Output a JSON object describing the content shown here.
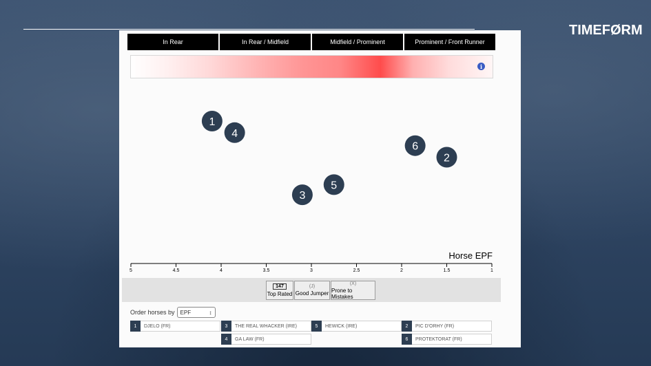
{
  "brand": "TIMEFØRM",
  "zones": [
    "In Rear",
    "In Rear / Midfield",
    "Midfield / Prominent",
    "Prominent / Front Runner"
  ],
  "colors": {
    "panel_bg": "#fbfbfb",
    "marker": "#2d3e52",
    "heat_peak": "#ff4c4c",
    "info": "#3a5cc4"
  },
  "icons": {
    "info": "info-icon",
    "select_arrow": "updown-arrow-icon"
  },
  "info_glyph": "i",
  "chart_data": {
    "type": "scatter",
    "xlabel": "Horse EPF",
    "x_reversed": true,
    "xlim": [
      5,
      1
    ],
    "xticks": [
      "5",
      "4.5",
      "4",
      "3.5",
      "3",
      "2.5",
      "2",
      "1.5",
      "1"
    ],
    "points": [
      {
        "label": "1",
        "x": 4.1,
        "row": 0.2
      },
      {
        "label": "4",
        "x": 3.85,
        "row": 0.28
      },
      {
        "label": "3",
        "x": 3.1,
        "row": 0.71
      },
      {
        "label": "5",
        "x": 2.75,
        "row": 0.64
      },
      {
        "label": "6",
        "x": 1.85,
        "row": 0.37
      },
      {
        "label": "2",
        "x": 1.5,
        "row": 0.45
      }
    ]
  },
  "features": [
    {
      "code": "147",
      "label": "Top Rated",
      "boxed": true
    },
    {
      "code": "(J)",
      "label": "Good Jumper",
      "boxed": false
    },
    {
      "code": "(X)",
      "label": "Prone to Mistakes",
      "boxed": false
    }
  ],
  "order": {
    "label": "Order horses by",
    "value": "EPF",
    "arrow": "↕"
  },
  "runners": [
    {
      "num": "1",
      "name": "DJELO (FR)"
    },
    {
      "num": "3",
      "name": "THE REAL WHACKER (IRE)"
    },
    {
      "num": "5",
      "name": "HEWICK (IRE)"
    },
    {
      "num": "2",
      "name": "PIC D'ORHY (FR)"
    },
    {
      "num": "4",
      "name": "GA LAW (FR)"
    },
    {
      "num": "6",
      "name": "PROTEKTORAT (FR)"
    }
  ]
}
